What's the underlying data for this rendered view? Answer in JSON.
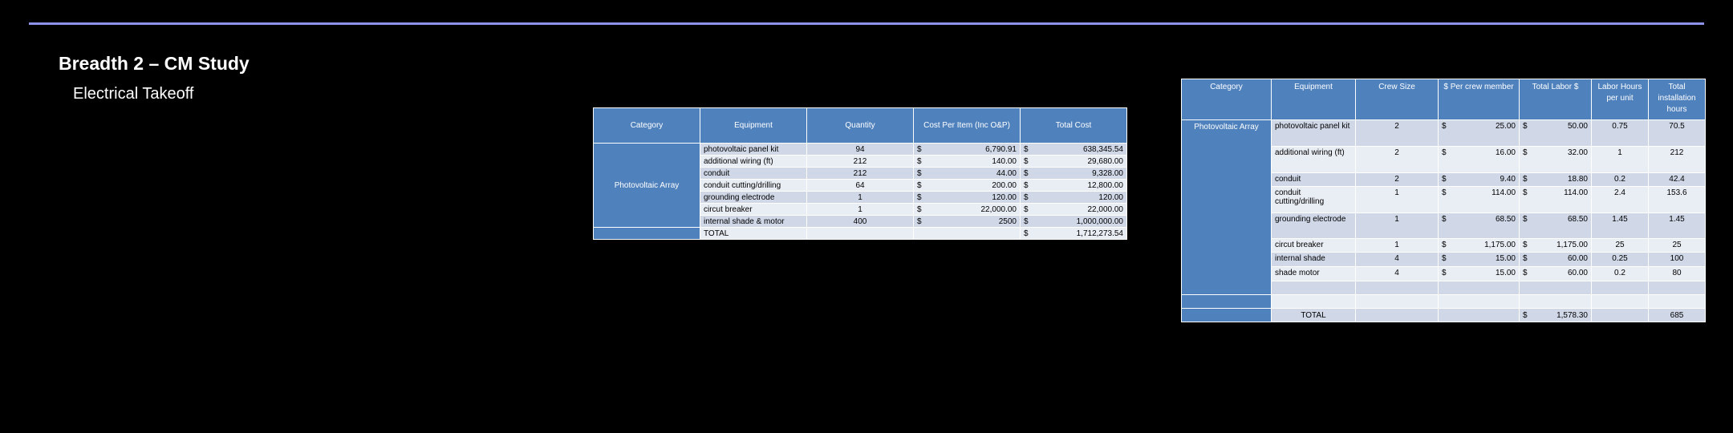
{
  "header": {
    "title": "Breadth 2 – CM Study",
    "subtitle": "Electrical Takeoff"
  },
  "table1": {
    "headers": [
      "Category",
      "Equipment",
      "Quantity",
      "Cost Per Item (Inc O&P)",
      "Total Cost"
    ],
    "category": "Photovoltaic Array",
    "rows": [
      {
        "equipment": "photovoltaic panel kit",
        "quantity": "94",
        "cost": [
          "$",
          "6,790.91"
        ],
        "total": [
          "$",
          "638,345.54"
        ]
      },
      {
        "equipment": "additional wiring (ft)",
        "quantity": "212",
        "cost": [
          "$",
          "140.00"
        ],
        "total": [
          "$",
          "29,680.00"
        ]
      },
      {
        "equipment": "conduit",
        "quantity": "212",
        "cost": [
          "$",
          "44.00"
        ],
        "total": [
          "$",
          "9,328.00"
        ]
      },
      {
        "equipment": "conduit cutting/drilling",
        "quantity": "64",
        "cost": [
          "$",
          "200.00"
        ],
        "total": [
          "$",
          "12,800.00"
        ]
      },
      {
        "equipment": "grounding electrode",
        "quantity": "1",
        "cost": [
          "$",
          "120.00"
        ],
        "total": [
          "$",
          "120.00"
        ]
      },
      {
        "equipment": "circut breaker",
        "quantity": "1",
        "cost": [
          "$",
          "22,000.00"
        ],
        "total": [
          "$",
          "22,000.00"
        ]
      },
      {
        "equipment": "internal shade & motor",
        "quantity": "400",
        "cost": [
          "$",
          "2500"
        ],
        "total": [
          "$",
          "1,000,000.00"
        ]
      }
    ],
    "total": {
      "label": "TOTAL",
      "total": [
        "$",
        "1,712,273.54"
      ]
    }
  },
  "table2": {
    "headers": [
      "Category",
      "Equipment",
      "Crew Size",
      "$ Per crew member",
      "Total Labor $",
      "Labor Hours per unit",
      "Total installation hours"
    ],
    "category": "Photovoltaic Array",
    "rows": [
      {
        "equipment": "photovoltaic panel kit",
        "crew": "2",
        "per": [
          "$",
          "25.00"
        ],
        "labor": [
          "$",
          "50.00"
        ],
        "hours": "0.75",
        "install": "70.5"
      },
      {
        "equipment": "additional wiring (ft)",
        "crew": "2",
        "per": [
          "$",
          "16.00"
        ],
        "labor": [
          "$",
          "32.00"
        ],
        "hours": "1",
        "install": "212"
      },
      {
        "equipment": "conduit",
        "crew": "2",
        "per": [
          "$",
          "9.40"
        ],
        "labor": [
          "$",
          "18.80"
        ],
        "hours": "0.2",
        "install": "42.4"
      },
      {
        "equipment": "conduit cutting/drilling",
        "crew": "1",
        "per": [
          "$",
          "114.00"
        ],
        "labor": [
          "$",
          "114.00"
        ],
        "hours": "2.4",
        "install": "153.6"
      },
      {
        "equipment": "grounding electrode",
        "crew": "1",
        "per": [
          "$",
          "68.50"
        ],
        "labor": [
          "$",
          "68.50"
        ],
        "hours": "1.45",
        "install": "1.45"
      },
      {
        "equipment": "circut breaker",
        "crew": "1",
        "per": [
          "$",
          "1,175.00"
        ],
        "labor": [
          "$",
          "1,175.00"
        ],
        "hours": "25",
        "install": "25"
      },
      {
        "equipment": "internal shade",
        "crew": "4",
        "per": [
          "$",
          "15.00"
        ],
        "labor": [
          "$",
          "60.00"
        ],
        "hours": "0.25",
        "install": "100"
      },
      {
        "equipment": "shade motor",
        "crew": "4",
        "per": [
          "$",
          "15.00"
        ],
        "labor": [
          "$",
          "60.00"
        ],
        "hours": "0.2",
        "install": "80"
      }
    ],
    "total": {
      "label": "TOTAL",
      "labor": [
        "$",
        "1,578.30"
      ],
      "install": "685"
    }
  }
}
